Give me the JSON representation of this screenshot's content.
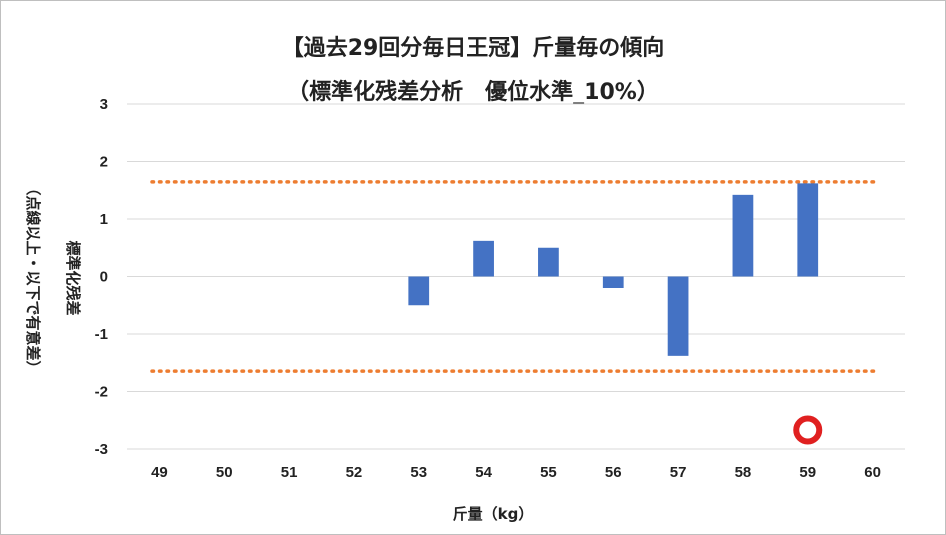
{
  "title_line1": "【過去29回分毎日王冠】斤量毎の傾向",
  "title_line2": "（標準化残差分析　優位水準_10%）",
  "colors": {
    "bar": "#4472C4",
    "threshold": "#ED7D31",
    "marker_stroke": "#E02020",
    "grid": "#d9d9d9"
  },
  "chart_data": {
    "type": "bar",
    "title": "【過去29回分毎日王冠】斤量毎の傾向 （標準化残差分析　優位水準_10%）",
    "xlabel": "斤量（kg）",
    "ylabel_line1": "標準化残差",
    "ylabel_line2": "（点線以上・以下で有意差）",
    "categories": [
      "49",
      "50",
      "51",
      "52",
      "53",
      "54",
      "55",
      "56",
      "57",
      "58",
      "59",
      "60"
    ],
    "values": [
      null,
      null,
      null,
      null,
      -0.5,
      0.62,
      0.5,
      -0.2,
      -1.38,
      1.42,
      1.62,
      null
    ],
    "ylim": [
      -3,
      3
    ],
    "yticks": [
      "3",
      "2",
      "1",
      "0",
      "-1",
      "-2",
      "-3"
    ],
    "thresholds": [
      1.645,
      -1.645
    ],
    "grid": true,
    "legend": "none",
    "marker": {
      "category": "59",
      "y": -2.67,
      "shape": "circle"
    }
  }
}
